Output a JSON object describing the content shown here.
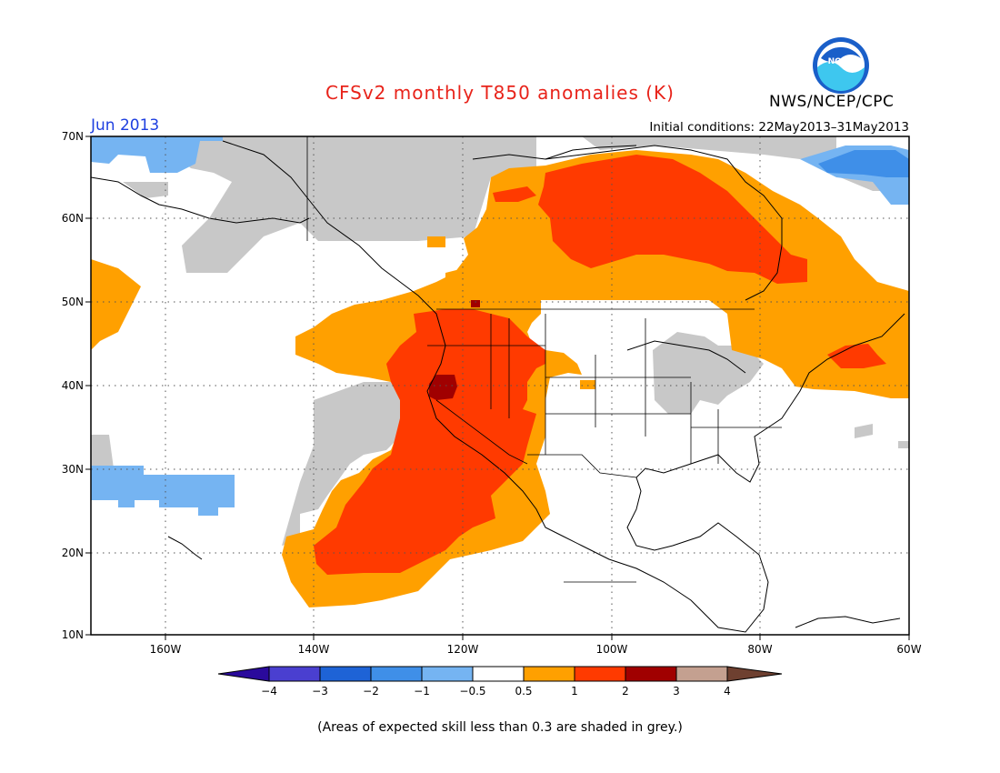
{
  "header": {
    "title": "CFSv2 monthly T850 anomalies (K)",
    "month": "Jun 2013",
    "initial_conditions": "Initial conditions: 22May2013–31May2013",
    "organization": "NWS/NCEP/CPC",
    "logo_text": "NOAA"
  },
  "map": {
    "lat_labels": [
      "70N",
      "60N",
      "50N",
      "40N",
      "30N",
      "20N",
      "10N"
    ],
    "lon_labels": [
      "160W",
      "140W",
      "120W",
      "100W",
      "80W",
      "60W"
    ],
    "extent": {
      "lon_min": -170,
      "lon_max": -60,
      "lat_min": 10,
      "lat_max": 70
    },
    "gridlines": "dotted"
  },
  "colorbar": {
    "labels": [
      "−4",
      "−3",
      "−2",
      "−1",
      "−0.5",
      "0.5",
      "1",
      "2",
      "3",
      "4"
    ],
    "colors": [
      "#2a0a9c",
      "#4a3fd0",
      "#1e63d6",
      "#3f8fe8",
      "#75b4f2",
      "#ffffff",
      "#ffa000",
      "#ff3a00",
      "#a00000",
      "#c4a090",
      "#6e4030"
    ],
    "skill_grey": "#c8c8c8"
  },
  "footnote": "(Areas of expected skill less than 0.3 are shaded in grey.)"
}
